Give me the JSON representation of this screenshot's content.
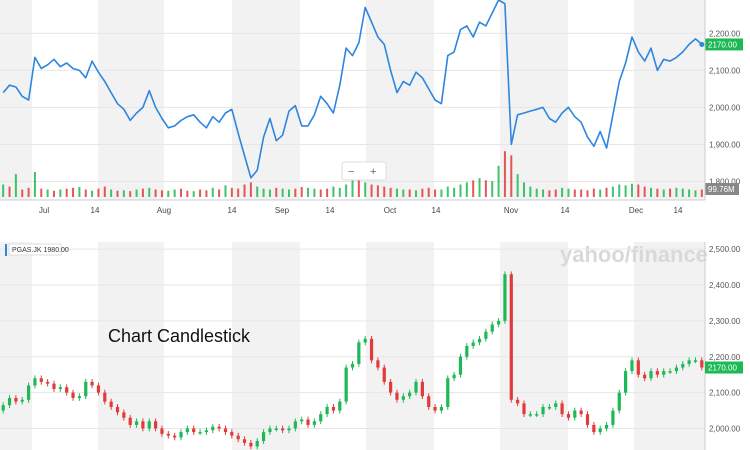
{
  "chart_data": [
    {
      "type": "line",
      "y_ticks": [
        "2,200.00",
        "2,100.00",
        "2,000.00",
        "1,900.00",
        "1,800.00"
      ],
      "y_tick_values": [
        2200,
        2100,
        2000,
        1900,
        1800
      ],
      "ylim": [
        1750,
        2290
      ],
      "x_labels": [
        "Jul",
        "14",
        "Aug",
        "14",
        "Sep",
        "14",
        "Oct",
        "14",
        "Nov",
        "14",
        "Dec",
        "14"
      ],
      "current_price_label": "2170.00",
      "volume_label": "99.76M",
      "zoom_controls": [
        "−",
        "+"
      ],
      "values": [
        2040,
        2060,
        2055,
        2030,
        2020,
        2135,
        2105,
        2115,
        2130,
        2110,
        2120,
        2105,
        2100,
        2080,
        2125,
        2095,
        2070,
        2040,
        2010,
        1995,
        1965,
        1985,
        2000,
        2045,
        2000,
        1970,
        1945,
        1950,
        1965,
        1975,
        1980,
        1960,
        1945,
        1975,
        1960,
        1985,
        1995,
        1930,
        1870,
        1810,
        1830,
        1920,
        1970,
        1910,
        1925,
        1990,
        2005,
        1950,
        1950,
        1980,
        2030,
        2010,
        1985,
        2060,
        2160,
        2140,
        2175,
        2270,
        2230,
        2190,
        2170,
        2100,
        2040,
        2070,
        2060,
        2095,
        2080,
        2050,
        2020,
        2010,
        2140,
        2150,
        2210,
        2220,
        2190,
        2230,
        2220,
        2255,
        2290,
        2280,
        1900,
        1980,
        1985,
        1990,
        1995,
        2000,
        1970,
        1960,
        1985,
        2000,
        1975,
        1960,
        1920,
        1895,
        1935,
        1890,
        1980,
        2070,
        2120,
        2190,
        2150,
        2125,
        2160,
        2100,
        2130,
        2125,
        2135,
        2150,
        2170,
        2185,
        2170
      ]
    },
    {
      "type": "bar",
      "values": [
        30,
        25,
        55,
        18,
        22,
        60,
        20,
        18,
        15,
        18,
        20,
        22,
        24,
        18,
        15,
        20,
        25,
        18,
        15,
        16,
        14,
        18,
        20,
        22,
        18,
        16,
        15,
        18,
        20,
        15,
        14,
        18,
        16,
        22,
        18,
        28,
        22,
        20,
        30,
        35,
        25,
        20,
        18,
        22,
        20,
        18,
        20,
        24,
        22,
        20,
        18,
        20,
        25,
        22,
        30,
        55,
        40,
        35,
        30,
        28,
        25,
        22,
        20,
        18,
        18,
        16,
        20,
        22,
        18,
        18,
        25,
        22,
        30,
        35,
        40,
        45,
        40,
        38,
        75,
        110,
        100,
        55,
        35,
        25,
        20,
        18,
        16,
        18,
        22,
        20,
        18,
        18,
        16,
        20,
        18,
        22,
        25,
        30,
        28,
        32,
        30,
        25,
        22,
        20,
        18,
        20,
        22,
        20,
        18,
        16,
        18
      ],
      "colors": [
        "g",
        "r",
        "g",
        "r",
        "r",
        "g",
        "r",
        "g",
        "r",
        "g",
        "r",
        "r",
        "g",
        "r",
        "g",
        "r",
        "r",
        "g",
        "r",
        "g",
        "r",
        "g",
        "r",
        "g",
        "r",
        "r",
        "g",
        "g",
        "r",
        "r",
        "g",
        "r",
        "r",
        "g",
        "r",
        "g",
        "r",
        "r",
        "r",
        "r",
        "g",
        "g",
        "g",
        "r",
        "g",
        "g",
        "r",
        "r",
        "g",
        "g",
        "r",
        "r",
        "g",
        "g",
        "g",
        "g",
        "r",
        "g",
        "r",
        "r",
        "r",
        "r",
        "g",
        "g",
        "r",
        "g",
        "r",
        "r",
        "r",
        "g",
        "g",
        "g",
        "g",
        "g",
        "r",
        "g",
        "r",
        "g",
        "g",
        "r",
        "r",
        "g",
        "g",
        "g",
        "g",
        "g",
        "r",
        "r",
        "g",
        "g",
        "r",
        "r",
        "r",
        "r",
        "g",
        "r",
        "g",
        "g",
        "g",
        "g",
        "r",
        "r",
        "g",
        "r",
        "g",
        "r",
        "g",
        "g",
        "g",
        "g",
        "r"
      ]
    },
    {
      "type": "candlestick",
      "title": "Chart Candlestick",
      "legend": "PGAS.JK  1980.00",
      "watermark": "yahoo/finance",
      "y_ticks": [
        "2,500.00",
        "2,400.00",
        "2,300.00",
        "2,200.00",
        "2,100.00",
        "2,000.00"
      ],
      "y_tick_values": [
        2500,
        2400,
        2300,
        2200,
        2100,
        2000
      ],
      "ylim": [
        1940,
        2520
      ],
      "current_price_label": "2170.00",
      "closes": [
        2065,
        2085,
        2075,
        2080,
        2120,
        2140,
        2130,
        2125,
        2110,
        2115,
        2100,
        2085,
        2090,
        2130,
        2120,
        2100,
        2075,
        2060,
        2045,
        2030,
        2010,
        2020,
        2000,
        2020,
        2000,
        1985,
        1980,
        1975,
        1990,
        2000,
        1990,
        1990,
        1995,
        2005,
        2000,
        1990,
        1980,
        1970,
        1960,
        1950,
        1965,
        1990,
        2000,
        2000,
        1995,
        2000,
        2020,
        2025,
        2010,
        2020,
        2040,
        2060,
        2050,
        2075,
        2170,
        2180,
        2240,
        2250,
        2190,
        2170,
        2130,
        2100,
        2080,
        2090,
        2100,
        2130,
        2090,
        2060,
        2050,
        2060,
        2140,
        2150,
        2200,
        2230,
        2240,
        2250,
        2270,
        2290,
        2300,
        2430,
        2080,
        2070,
        2040,
        2040,
        2040,
        2060,
        2060,
        2070,
        2040,
        2030,
        2050,
        2040,
        2010,
        1990,
        2000,
        2010,
        2050,
        2100,
        2160,
        2190,
        2150,
        2140,
        2160,
        2150,
        2160,
        2160,
        2170,
        2180,
        2190,
        2190,
        2170
      ]
    }
  ]
}
